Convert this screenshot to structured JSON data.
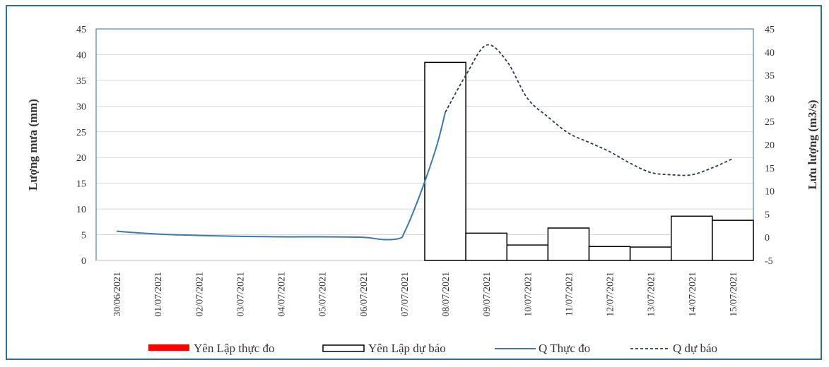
{
  "chart_data": {
    "type": "bar+line",
    "categories": [
      "30/06/2021",
      "01/07/2021",
      "02/07/2021",
      "03/07/2021",
      "04/07/2021",
      "05/07/2021",
      "06/07/2021",
      "07/07/2021",
      "08/07/2021",
      "09/07/2021",
      "10/07/2021",
      "11/07/2021",
      "12/07/2021",
      "13/07/2021",
      "14/07/2021",
      "15/07/2021"
    ],
    "ylabel_left": "Lượng mưa (mm)",
    "ylabel_right": "Lưu lượng (m3/s)",
    "ylim_left": [
      0,
      45
    ],
    "ylim_right": [
      -5,
      45
    ],
    "yticks_left": [
      0,
      5,
      10,
      15,
      20,
      25,
      30,
      35,
      40,
      45
    ],
    "yticks_right": [
      -5,
      0,
      5,
      10,
      15,
      20,
      25,
      30,
      35,
      40,
      45
    ],
    "grid": true,
    "legend_position": "bottom",
    "series": [
      {
        "name": "Yên Lập thực đo",
        "kind": "bar",
        "axis": "left",
        "color": "#ff0000",
        "values": [
          null,
          null,
          null,
          null,
          null,
          null,
          null,
          null,
          null,
          null,
          null,
          null,
          null,
          null,
          null,
          null
        ]
      },
      {
        "name": "Yên Lập dự báo",
        "kind": "bar",
        "axis": "left",
        "color": "#000000",
        "values": [
          null,
          null,
          null,
          null,
          null,
          null,
          null,
          null,
          38.5,
          5.3,
          3.0,
          6.3,
          2.7,
          2.6,
          8.6,
          7.8
        ]
      },
      {
        "name": "Q Thực đo",
        "kind": "line",
        "axis": "right",
        "color": "#3b78b5",
        "x": [
          0,
          1,
          2,
          3,
          4,
          5,
          6,
          6.5,
          6.9,
          7,
          7.2,
          7.5,
          7.8,
          8
        ],
        "values": [
          1.3,
          0.7,
          0.4,
          0.2,
          0.1,
          0.1,
          0.0,
          -0.5,
          -0.2,
          1,
          5,
          12,
          20,
          27
        ]
      },
      {
        "name": "Q dự báo",
        "kind": "dashed-line",
        "axis": "right",
        "color": "#2b3a52",
        "x": [
          8,
          8.5,
          9,
          9.5,
          10,
          10.5,
          11,
          11.5,
          12,
          12.5,
          13,
          13.5,
          14,
          14.5,
          15
        ],
        "values": [
          27,
          35,
          41.5,
          38,
          30,
          26,
          22.5,
          20.5,
          18.5,
          16,
          14,
          13.5,
          13.5,
          15,
          17
        ]
      }
    ]
  }
}
